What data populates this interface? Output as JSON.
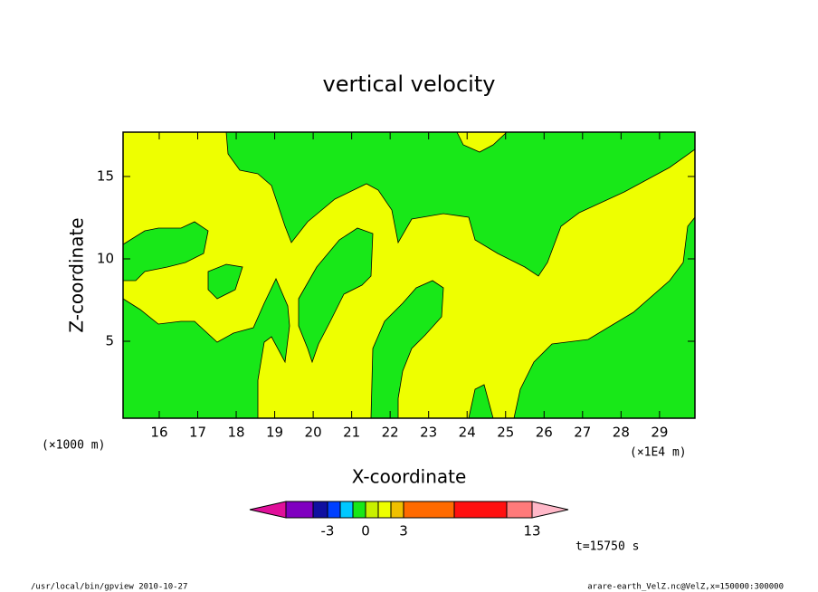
{
  "chart_data": {
    "type": "contour",
    "title": "vertical velocity",
    "x_label": "X-coordinate",
    "y_label": "Z-coordinate",
    "x_units": "(×1E4 m)",
    "y_units": "(×1000 m)",
    "xlim": [
      15.06,
      29.92
    ],
    "xticks": [
      16,
      17,
      18,
      19,
      20,
      21,
      22,
      23,
      24,
      25,
      26,
      27,
      28,
      29
    ],
    "ylim": [
      0.33,
      17.69
    ],
    "yticks": [
      5,
      10,
      15
    ],
    "colorbar": {
      "colors": [
        "#e0109a",
        "#8000c0",
        "#1010a0",
        "#0040ff",
        "#00c8ff",
        "#18e818",
        "#c8f000",
        "#eeff00",
        "#f0c000",
        "#ff6a00",
        "#ff1010",
        "#ff7a7a",
        "#ffb8c8"
      ],
      "levels": [
        null,
        null,
        -3,
        null,
        null,
        0,
        null,
        null,
        3,
        null,
        null,
        13
      ]
    },
    "time_label": "t=15750 s",
    "footer_left": "/usr/local/bin/gpview  2010-10-27",
    "footer_right": "arare-earth_VelZ.nc@VelZ,x=150000:300000"
  }
}
